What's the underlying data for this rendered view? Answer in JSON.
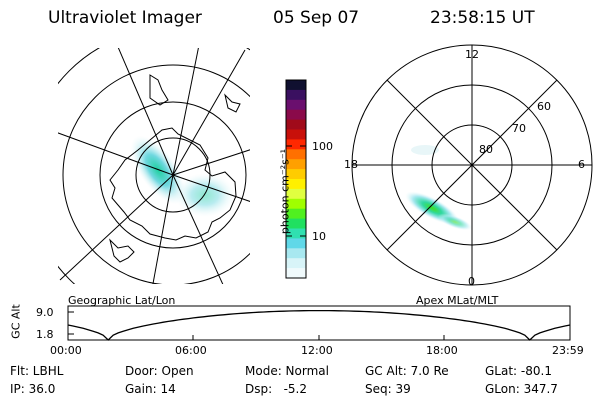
{
  "header": {
    "instrument": "Ultraviolet Imager",
    "date": "05 Sep 07",
    "time": "23:58:15 UT"
  },
  "colorbar": {
    "unit_label": "photon cm⁻²s⁻¹",
    "tick_labels": [
      "100",
      "10"
    ],
    "colors": [
      "#101030",
      "#3a1060",
      "#6a0f6e",
      "#8a0a4a",
      "#a00a1a",
      "#c8100a",
      "#ff2800",
      "#ff7000",
      "#ffa000",
      "#ffcc00",
      "#fff000",
      "#e0ff40",
      "#a0ff00",
      "#50f020",
      "#20e060",
      "#30e0b0",
      "#60d8e8",
      "#a8e8f0",
      "#d8f4f8",
      "#f0fafc"
    ]
  },
  "left_plot": {
    "title": "Geographic Lat/Lon"
  },
  "right_plot": {
    "title": "Apex MLat/MLT",
    "mlt_labels": {
      "top": "12",
      "left": "18",
      "right": "6",
      "bottom": "0"
    },
    "lat_labels": [
      "60",
      "70",
      "80"
    ]
  },
  "altitude_panel": {
    "ylabel": "GC Alt",
    "yticks": [
      "9.0",
      "1.8"
    ],
    "xticks": [
      "00:00",
      "06:00",
      "12:00",
      "18:00",
      "23:59"
    ]
  },
  "status": {
    "filter": "Flt: LBHL",
    "door": "Door: Open",
    "mode": "Mode: Normal",
    "gc_alt": "GC Alt: 7.0 Re",
    "glat": "GLat: -80.1",
    "ip": "IP: 36.0",
    "gain": "Gain: 14",
    "dsp": "Dsp:   -5.2",
    "seq": "Seq: 39",
    "glon": "GLon: 347.7"
  }
}
